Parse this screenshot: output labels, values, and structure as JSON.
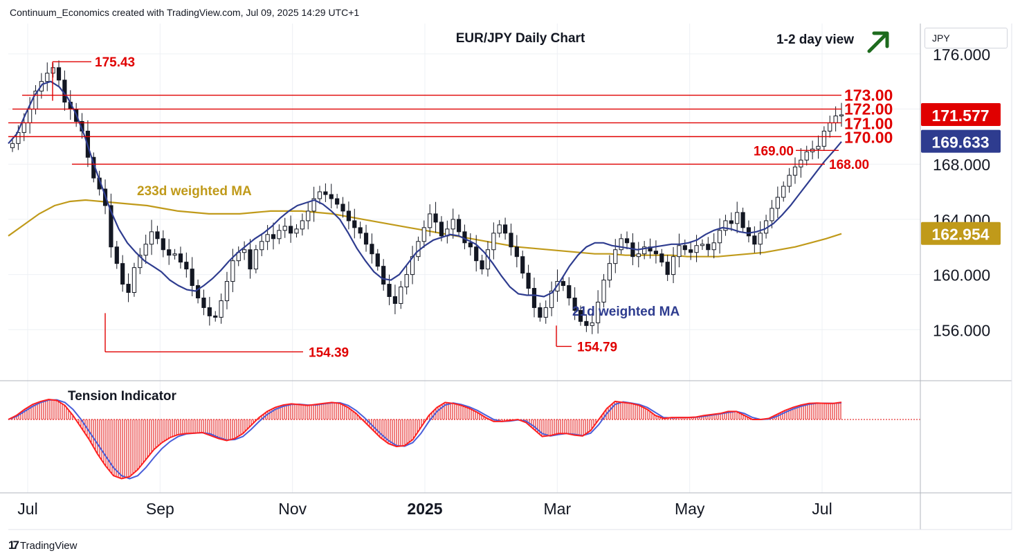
{
  "header": {
    "text": "Continuum_Economics created with TradingView.com, Jul 09, 2025 14:29 UTC+1"
  },
  "footer": {
    "brand": "TradingView",
    "logo_mark": "17"
  },
  "currency": "JPY",
  "colors": {
    "line": "#e00000",
    "candle": "#131722",
    "ma233": "#c09a1a",
    "ma21": "#2e3c8f",
    "tension_fill": "#e00000",
    "tension_fast": "#ff2020",
    "tension_slow": "#4a5ed8",
    "arrow": "#1e6b1e"
  },
  "chart_data": {
    "type": "candlestick",
    "title": "EUR/JPY Daily Chart",
    "view": "1-2 day view",
    "view_icon": "arrow-up-right-icon",
    "x_axis": {
      "ticks": [
        "Jul",
        "Sep",
        "Nov",
        "2025",
        "Mar",
        "May",
        "Jul"
      ]
    },
    "y_axis": {
      "ticks": [
        "176.000",
        "172.000",
        "168.000",
        "164.000",
        "160.000",
        "156.000"
      ],
      "range": [
        152.3,
        178.2
      ]
    },
    "price_tags": [
      {
        "label": "171.577",
        "value": 171.577,
        "color": "#e00000"
      },
      {
        "label": "169.633",
        "value": 169.633,
        "color": "#2e3c8f"
      },
      {
        "label": "162.954",
        "value": 162.954,
        "color": "#c09a1a"
      }
    ],
    "levels": [
      {
        "label": "175.43",
        "value": 175.43
      },
      {
        "label": "173.00",
        "value": 173.0
      },
      {
        "label": "172.00",
        "value": 172.0
      },
      {
        "label": "171.00",
        "value": 171.0
      },
      {
        "label": "170.00",
        "value": 170.0
      },
      {
        "label": "169.00",
        "value": 169.0
      },
      {
        "label": "168.00",
        "value": 168.0
      },
      {
        "label": "154.39",
        "value": 154.39
      },
      {
        "label": "154.79",
        "value": 154.79
      }
    ],
    "annotations": {
      "ma233": "233d weighted MA",
      "ma21": "21d weighted MA",
      "tension": "Tension Indicator"
    },
    "close_series": [
      169.5,
      170.3,
      171.0,
      172.0,
      173.3,
      174.0,
      174.6,
      175.0,
      174.1,
      172.5,
      172.0,
      171.1,
      170.4,
      168.5,
      167.0,
      166.2,
      165.0,
      162.0,
      160.8,
      159.3,
      158.7,
      160.5,
      161.4,
      162.2,
      163.1,
      162.6,
      161.8,
      161.4,
      161.5,
      160.9,
      160.4,
      159.2,
      158.3,
      157.6,
      157.0,
      156.9,
      158.1,
      159.5,
      161.0,
      161.6,
      161.8,
      160.4,
      161.8,
      162.4,
      162.9,
      162.6,
      163.2,
      163.5,
      163.0,
      163.3,
      163.9,
      164.6,
      165.5,
      166.0,
      165.8,
      165.5,
      165.1,
      164.6,
      163.9,
      163.4,
      163.0,
      162.2,
      161.5,
      160.6,
      159.3,
      158.4,
      157.9,
      159.1,
      160.0,
      161.3,
      162.4,
      163.4,
      164.4,
      163.8,
      162.8,
      163.3,
      164.0,
      163.1,
      162.3,
      162.0,
      161.0,
      160.4,
      161.8,
      163.0,
      163.6,
      163.0,
      162.0,
      161.3,
      160.1,
      159.0,
      157.6,
      156.9,
      157.6,
      158.8,
      159.5,
      159.2,
      158.3,
      157.4,
      156.6,
      156.3,
      156.5,
      158.0,
      159.6,
      160.8,
      161.8,
      162.6,
      162.3,
      161.3,
      161.5,
      162.0,
      161.7,
      161.5,
      160.9,
      160.0,
      161.3,
      162.1,
      161.8,
      161.6,
      162.1,
      162.2,
      161.8,
      162.3,
      163.2,
      163.9,
      163.7,
      164.5,
      163.4,
      162.8,
      162.2,
      163.0,
      163.9,
      164.8,
      165.6,
      166.4,
      167.2,
      167.8,
      168.3,
      168.9,
      169.1,
      169.3,
      170.4,
      171.0,
      171.5,
      171.58
    ],
    "ma21_series": [
      169.5,
      170.2,
      171.6,
      172.9,
      173.8,
      174.0,
      173.6,
      172.8,
      171.6,
      170.0,
      168.1,
      166.4,
      164.7,
      163.3,
      162.3,
      161.6,
      161.0,
      160.6,
      160.2,
      159.6,
      159.2,
      158.9,
      158.8,
      159.2,
      159.7,
      160.3,
      161.0,
      161.6,
      162.1,
      162.6,
      163.0,
      163.5,
      164.1,
      164.6,
      165.0,
      165.2,
      165.4,
      165.1,
      164.6,
      164.0,
      163.0,
      161.9,
      161.0,
      160.2,
      159.7,
      159.6,
      160.0,
      160.8,
      161.6,
      162.1,
      162.5,
      162.7,
      162.9,
      162.8,
      162.5,
      162.2,
      161.6,
      160.8,
      159.9,
      159.1,
      158.6,
      158.5,
      158.5,
      158.4,
      158.7,
      159.6,
      160.6,
      161.4,
      162.0,
      162.3,
      162.3,
      162.1,
      162.0,
      161.9,
      161.8,
      161.9,
      162.0,
      162.1,
      162.2,
      162.2,
      162.3,
      162.5,
      162.9,
      163.2,
      163.4,
      163.3,
      163.1,
      163.0,
      163.1,
      163.3,
      163.7,
      164.3,
      165.0,
      165.8,
      166.6,
      167.4,
      168.2,
      168.9,
      169.63
    ],
    "ma233_series": [
      162.8,
      163.6,
      164.4,
      165.0,
      165.3,
      165.4,
      165.3,
      165.2,
      165.1,
      165.0,
      164.8,
      164.6,
      164.5,
      164.4,
      164.4,
      164.4,
      164.5,
      164.6,
      164.6,
      164.6,
      164.5,
      164.4,
      164.2,
      164.0,
      163.8,
      163.6,
      163.4,
      163.2,
      163.0,
      162.8,
      162.6,
      162.4,
      162.2,
      162.0,
      161.9,
      161.8,
      161.7,
      161.6,
      161.5,
      161.5,
      161.4,
      161.4,
      161.4,
      161.4,
      161.3,
      161.3,
      161.3,
      161.4,
      161.5,
      161.6,
      161.8,
      162.0,
      162.3,
      162.6,
      162.954
    ],
    "tension_fast": [
      0.0,
      0.2,
      0.5,
      0.75,
      0.9,
      1.0,
      0.95,
      0.7,
      0.2,
      -0.4,
      -1.0,
      -1.7,
      -2.3,
      -2.8,
      -2.95,
      -2.85,
      -2.5,
      -2.0,
      -1.5,
      -1.15,
      -0.9,
      -0.75,
      -0.7,
      -0.68,
      -0.65,
      -0.8,
      -0.95,
      -1.05,
      -0.95,
      -0.7,
      -0.3,
      0.1,
      0.4,
      0.6,
      0.72,
      0.78,
      0.74,
      0.7,
      0.75,
      0.8,
      0.85,
      0.8,
      0.6,
      0.3,
      -0.1,
      -0.5,
      -0.9,
      -1.2,
      -1.35,
      -1.3,
      -1.0,
      -0.4,
      0.2,
      0.6,
      0.85,
      0.8,
      0.7,
      0.55,
      0.35,
      0.1,
      -0.1,
      -0.1,
      -0.05,
      0.0,
      -0.15,
      -0.5,
      -0.85,
      -0.8,
      -0.7,
      -0.7,
      -0.78,
      -0.82,
      -0.55,
      0.0,
      0.55,
      0.9,
      0.85,
      0.8,
      0.7,
      0.5,
      0.2,
      0.05,
      0.1,
      0.1,
      0.1,
      0.12,
      0.2,
      0.25,
      0.3,
      0.4,
      0.4,
      0.2,
      0.0,
      0.0,
      0.05,
      0.25,
      0.45,
      0.6,
      0.72,
      0.8,
      0.82,
      0.8,
      0.8,
      0.86
    ],
    "tension_slow": [
      0.0,
      0.15,
      0.4,
      0.65,
      0.85,
      0.97,
      0.98,
      0.85,
      0.5,
      0.0,
      -0.6,
      -1.2,
      -1.8,
      -2.4,
      -2.8,
      -2.95,
      -2.8,
      -2.4,
      -1.9,
      -1.45,
      -1.1,
      -0.85,
      -0.72,
      -0.68,
      -0.66,
      -0.72,
      -0.9,
      -1.02,
      -1.0,
      -0.85,
      -0.5,
      -0.1,
      0.25,
      0.5,
      0.66,
      0.75,
      0.76,
      0.72,
      0.72,
      0.78,
      0.83,
      0.83,
      0.7,
      0.45,
      0.1,
      -0.3,
      -0.7,
      -1.05,
      -1.3,
      -1.33,
      -1.15,
      -0.7,
      -0.1,
      0.4,
      0.72,
      0.82,
      0.75,
      0.62,
      0.45,
      0.22,
      0.0,
      -0.1,
      -0.08,
      -0.02,
      -0.08,
      -0.35,
      -0.7,
      -0.82,
      -0.75,
      -0.7,
      -0.74,
      -0.8,
      -0.68,
      -0.25,
      0.3,
      0.75,
      0.88,
      0.82,
      0.75,
      0.6,
      0.35,
      0.1,
      0.08,
      0.1,
      0.1,
      0.11,
      0.16,
      0.22,
      0.28,
      0.35,
      0.4,
      0.3,
      0.1,
      0.0,
      0.02,
      0.15,
      0.35,
      0.52,
      0.66,
      0.76,
      0.81,
      0.81,
      0.8,
      0.83
    ]
  }
}
